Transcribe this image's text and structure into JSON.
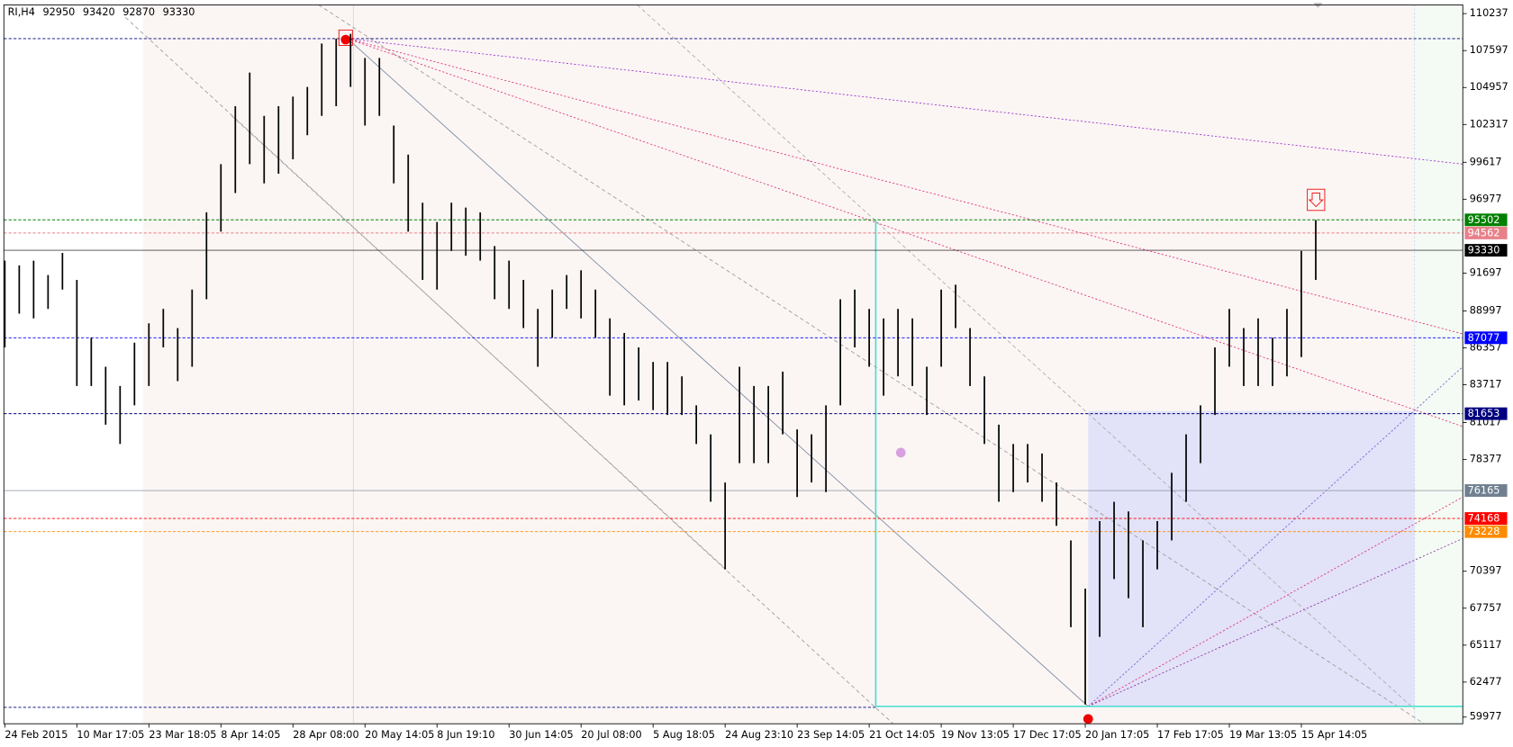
{
  "chart_data": {
    "type": "ohlc",
    "symbol": "RI,H4",
    "last_bar": [
      92950,
      93420,
      92870,
      93330
    ],
    "bar_color": "#000000",
    "categories": [
      "24 Feb 2015",
      null,
      null,
      null,
      null,
      "10 Mar 17:05",
      null,
      null,
      null,
      null,
      "23 Mar 18:05",
      null,
      null,
      null,
      null,
      "8 Apr 14:05",
      null,
      null,
      null,
      null,
      "28 Apr 08:00",
      null,
      null,
      null,
      null,
      "20 May 14:05",
      null,
      null,
      null,
      null,
      "8 Jun 19:10",
      null,
      null,
      null,
      null,
      "30 Jun 14:05",
      null,
      null,
      null,
      null,
      "20 Jul 08:00",
      null,
      null,
      null,
      null,
      "5 Aug 18:05",
      null,
      null,
      null,
      null,
      "24 Aug 23:10",
      null,
      null,
      null,
      null,
      "23 Sep 14:05",
      null,
      null,
      null,
      null,
      "21 Oct 14:05",
      null,
      null,
      null,
      null,
      "19 Nov 13:05",
      null,
      null,
      null,
      null,
      "17 Dec 17:05",
      null,
      null,
      null,
      null,
      "20 Jan 17:05",
      null,
      null,
      null,
      null,
      "17 Feb 17:05",
      null,
      null,
      null,
      null,
      "19 Mar 13:05",
      null,
      null,
      null,
      null,
      "15 Apr 14:05",
      null
    ],
    "high": [
      92590,
      92250,
      92590,
      91560,
      93140,
      91210,
      87080,
      85010,
      83630,
      86730,
      88110,
      89140,
      87770,
      90520,
      96040,
      99480,
      103620,
      106030,
      102930,
      103620,
      104310,
      105000,
      108100,
      108450,
      108790,
      107070,
      107070,
      102240,
      100170,
      96730,
      95350,
      96730,
      96380,
      96040,
      93630,
      92590,
      91210,
      89140,
      90520,
      91560,
      91900,
      90520,
      88460,
      87420,
      86390,
      85350,
      85350,
      84320,
      82250,
      80180,
      76740,
      85010,
      83630,
      83630,
      84660,
      80530,
      80180,
      82250,
      89830,
      90520,
      89140,
      88460,
      89140,
      88460,
      85010,
      90520,
      90870,
      87770,
      84320,
      80870,
      79490,
      79490,
      78810,
      76740,
      72600,
      69160,
      73980,
      75360,
      74670,
      72600,
      73980,
      77430,
      80180,
      82250,
      86390,
      89140,
      87770,
      88460,
      87080,
      89140,
      93280,
      95490
    ],
    "low": [
      86390,
      88800,
      88460,
      89140,
      90520,
      83630,
      83630,
      80870,
      79490,
      82250,
      83630,
      86390,
      83980,
      85010,
      89830,
      94660,
      97420,
      99480,
      98110,
      98800,
      99830,
      101550,
      102930,
      103620,
      105000,
      102240,
      102930,
      98110,
      94660,
      91210,
      90520,
      93280,
      92940,
      92590,
      89830,
      89140,
      87770,
      85010,
      87080,
      89140,
      88460,
      87080,
      82940,
      82250,
      82600,
      81910,
      81560,
      81560,
      79490,
      75360,
      70530,
      78120,
      78120,
      78120,
      80180,
      75700,
      76740,
      76050,
      82250,
      86390,
      85010,
      82940,
      84320,
      83630,
      81560,
      85010,
      87770,
      83630,
      79490,
      75360,
      76050,
      76740,
      75360,
      73640,
      66400,
      60880,
      65710,
      69840,
      68470,
      66400,
      70530,
      72600,
      75360,
      78120,
      81560,
      85010,
      83630,
      83630,
      83630,
      84320,
      85700,
      91210
    ],
    "ylim": [
      59500,
      110860
    ],
    "yticks": [
      110237,
      107597,
      104957,
      102317,
      99617,
      96977,
      91697,
      88997,
      86357,
      83717,
      81017,
      78377,
      70397,
      67757,
      65117,
      62477,
      59977
    ],
    "levels": [
      {
        "value": 95502,
        "color": "#008000",
        "style": "dotted"
      },
      {
        "value": 94562,
        "color": "#e8808a",
        "style": "dotted"
      },
      {
        "value": 93330,
        "color": "#000000",
        "style": "solid"
      },
      {
        "value": 87077,
        "color": "#0000ff",
        "style": "dotted"
      },
      {
        "value": 81653,
        "color": "#000080",
        "style": "dotted"
      },
      {
        "value": 76165,
        "color": "#708090",
        "style": "solid"
      },
      {
        "value": 74168,
        "color": "#ff0000",
        "style": "dotted"
      },
      {
        "value": 73228,
        "color": "#ff8c00",
        "style": "dotted"
      }
    ]
  }
}
